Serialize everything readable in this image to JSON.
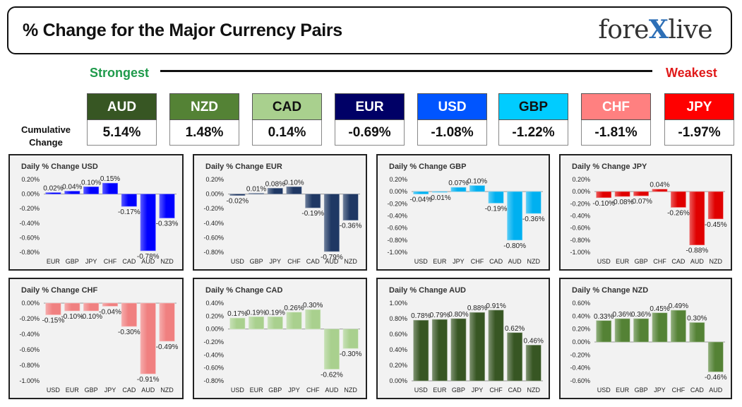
{
  "header": {
    "title": "% Change for the Major Currency Pairs",
    "logo_pre": "fore",
    "logo_x": "X",
    "logo_post": "live"
  },
  "ranking": {
    "strongest": "Strongest",
    "weakest": "Weakest",
    "cumulative_label": [
      "Cumulative",
      "Change"
    ]
  },
  "currencies": [
    {
      "code": "AUD",
      "value": "5.14%",
      "bg": "#375623",
      "fg": "#ffffff"
    },
    {
      "code": "NZD",
      "value": "1.48%",
      "bg": "#548235",
      "fg": "#ffffff"
    },
    {
      "code": "CAD",
      "value": "0.14%",
      "bg": "#a9d08e",
      "fg": "#111111"
    },
    {
      "code": "EUR",
      "value": "-0.69%",
      "bg": "#000066",
      "fg": "#ffffff"
    },
    {
      "code": "USD",
      "value": "-1.08%",
      "bg": "#0055ff",
      "fg": "#ffffff"
    },
    {
      "code": "GBP",
      "value": "-1.22%",
      "bg": "#00ccff",
      "fg": "#111111"
    },
    {
      "code": "CHF",
      "value": "-1.81%",
      "bg": "#ff8080",
      "fg": "#ffffff"
    },
    {
      "code": "JPY",
      "value": "-1.97%",
      "bg": "#ff0000",
      "fg": "#ffffff"
    }
  ],
  "chart_data": [
    {
      "type": "bar",
      "title": "Daily % Change USD",
      "color": "#0000ff",
      "categories": [
        "EUR",
        "GBP",
        "JPY",
        "CHF",
        "CAD",
        "AUD",
        "NZD"
      ],
      "values": [
        0.02,
        0.04,
        0.1,
        0.15,
        -0.17,
        -0.78,
        -0.33
      ],
      "labels": [
        "0.02%",
        "0.04%",
        "0.10%",
        "0.15%",
        "-0.17%",
        "-0.78%",
        "-0.33%"
      ],
      "ylim": [
        -0.8,
        0.2
      ],
      "step": 0.2,
      "ticks": [
        "0.20%",
        "0.00%",
        "-0.20%",
        "-0.40%",
        "-0.60%",
        "-0.80%"
      ]
    },
    {
      "type": "bar",
      "title": "Daily % Change EUR",
      "color": "#1f3864",
      "categories": [
        "USD",
        "GBP",
        "JPY",
        "CHF",
        "CAD",
        "AUD",
        "NZD"
      ],
      "values": [
        -0.02,
        0.01,
        0.08,
        0.1,
        -0.19,
        -0.79,
        -0.36
      ],
      "labels": [
        "-0.02%",
        "0.01%",
        "0.08%",
        "0.10%",
        "-0.19%",
        "-0.79%",
        "-0.36%"
      ],
      "ylim": [
        -0.8,
        0.2
      ],
      "step": 0.2,
      "ticks": [
        "0.20%",
        "0.00%",
        "-0.20%",
        "-0.40%",
        "-0.60%",
        "-0.80%"
      ]
    },
    {
      "type": "bar",
      "title": "Daily % Change GBP",
      "color": "#00b0f0",
      "categories": [
        "USD",
        "EUR",
        "JPY",
        "CHF",
        "CAD",
        "AUD",
        "NZD"
      ],
      "values": [
        -0.04,
        -0.01,
        0.07,
        0.1,
        -0.19,
        -0.8,
        -0.36
      ],
      "labels": [
        "-0.04%",
        "-0.01%",
        "0.07%",
        "0.10%",
        "-0.19%",
        "-0.80%",
        "-0.36%"
      ],
      "ylim": [
        -1.0,
        0.2
      ],
      "step": 0.2,
      "ticks": [
        "0.20%",
        "0.00%",
        "-0.20%",
        "-0.40%",
        "-0.60%",
        "-0.80%",
        "-1.00%"
      ]
    },
    {
      "type": "bar",
      "title": "Daily % Change JPY",
      "color": "#e00000",
      "categories": [
        "USD",
        "EUR",
        "GBP",
        "CHF",
        "CAD",
        "AUD",
        "NZD"
      ],
      "values": [
        -0.1,
        -0.08,
        -0.07,
        0.04,
        -0.26,
        -0.88,
        -0.45
      ],
      "labels": [
        "-0.10%",
        "-0.08%",
        "-0.07%",
        "0.04%",
        "-0.26%",
        "-0.88%",
        "-0.45%"
      ],
      "ylim": [
        -1.0,
        0.2
      ],
      "step": 0.2,
      "ticks": [
        "0.20%",
        "0.00%",
        "-0.20%",
        "-0.40%",
        "-0.60%",
        "-0.80%",
        "-1.00%"
      ]
    },
    {
      "type": "bar",
      "title": "Daily % Change CHF",
      "color": "#f08080",
      "categories": [
        "USD",
        "EUR",
        "GBP",
        "JPY",
        "CAD",
        "AUD",
        "NZD"
      ],
      "values": [
        -0.15,
        -0.1,
        -0.1,
        -0.04,
        -0.3,
        -0.91,
        -0.49
      ],
      "labels": [
        "-0.15%",
        "-0.10%",
        "-0.10%",
        "-0.04%",
        "-0.30%",
        "-0.91%",
        "-0.49%"
      ],
      "ylim": [
        -1.0,
        0.0
      ],
      "step": 0.2,
      "ticks": [
        "0.00%",
        "-0.20%",
        "-0.40%",
        "-0.60%",
        "-0.80%",
        "-1.00%"
      ]
    },
    {
      "type": "bar",
      "title": "Daily % Change CAD",
      "color": "#a9d08e",
      "categories": [
        "USD",
        "EUR",
        "GBP",
        "JPY",
        "CHF",
        "AUD",
        "NZD"
      ],
      "values": [
        0.17,
        0.19,
        0.19,
        0.26,
        0.3,
        -0.62,
        -0.3
      ],
      "labels": [
        "0.17%",
        "0.19%",
        "0.19%",
        "0.26%",
        "0.30%",
        "-0.62%",
        "-0.30%"
      ],
      "ylim": [
        -0.8,
        0.4
      ],
      "step": 0.2,
      "ticks": [
        "0.40%",
        "0.20%",
        "0.00%",
        "-0.20%",
        "-0.40%",
        "-0.60%",
        "-0.80%"
      ]
    },
    {
      "type": "bar",
      "title": "Daily % Change AUD",
      "color": "#375623",
      "categories": [
        "USD",
        "EUR",
        "GBP",
        "JPY",
        "CHF",
        "CAD",
        "NZD"
      ],
      "values": [
        0.78,
        0.79,
        0.8,
        0.88,
        0.91,
        0.62,
        0.46
      ],
      "labels": [
        "0.78%",
        "0.79%",
        "0.80%",
        "0.88%",
        "0.91%",
        "0.62%",
        "0.46%"
      ],
      "ylim": [
        0.0,
        1.0
      ],
      "step": 0.2,
      "ticks": [
        "1.00%",
        "0.80%",
        "0.60%",
        "0.40%",
        "0.20%",
        "0.00%"
      ]
    },
    {
      "type": "bar",
      "title": "Daily % Change NZD",
      "color": "#548235",
      "categories": [
        "USD",
        "EUR",
        "GBP",
        "JPY",
        "CHF",
        "CAD",
        "AUD"
      ],
      "values": [
        0.33,
        0.36,
        0.36,
        0.45,
        0.49,
        0.3,
        -0.46
      ],
      "labels": [
        "0.33%",
        "0.36%",
        "0.36%",
        "0.45%",
        "0.49%",
        "0.30%",
        "-0.46%"
      ],
      "ylim": [
        -0.6,
        0.6
      ],
      "step": 0.2,
      "ticks": [
        "0.60%",
        "0.40%",
        "0.20%",
        "0.00%",
        "-0.20%",
        "-0.40%",
        "-0.60%"
      ]
    }
  ]
}
